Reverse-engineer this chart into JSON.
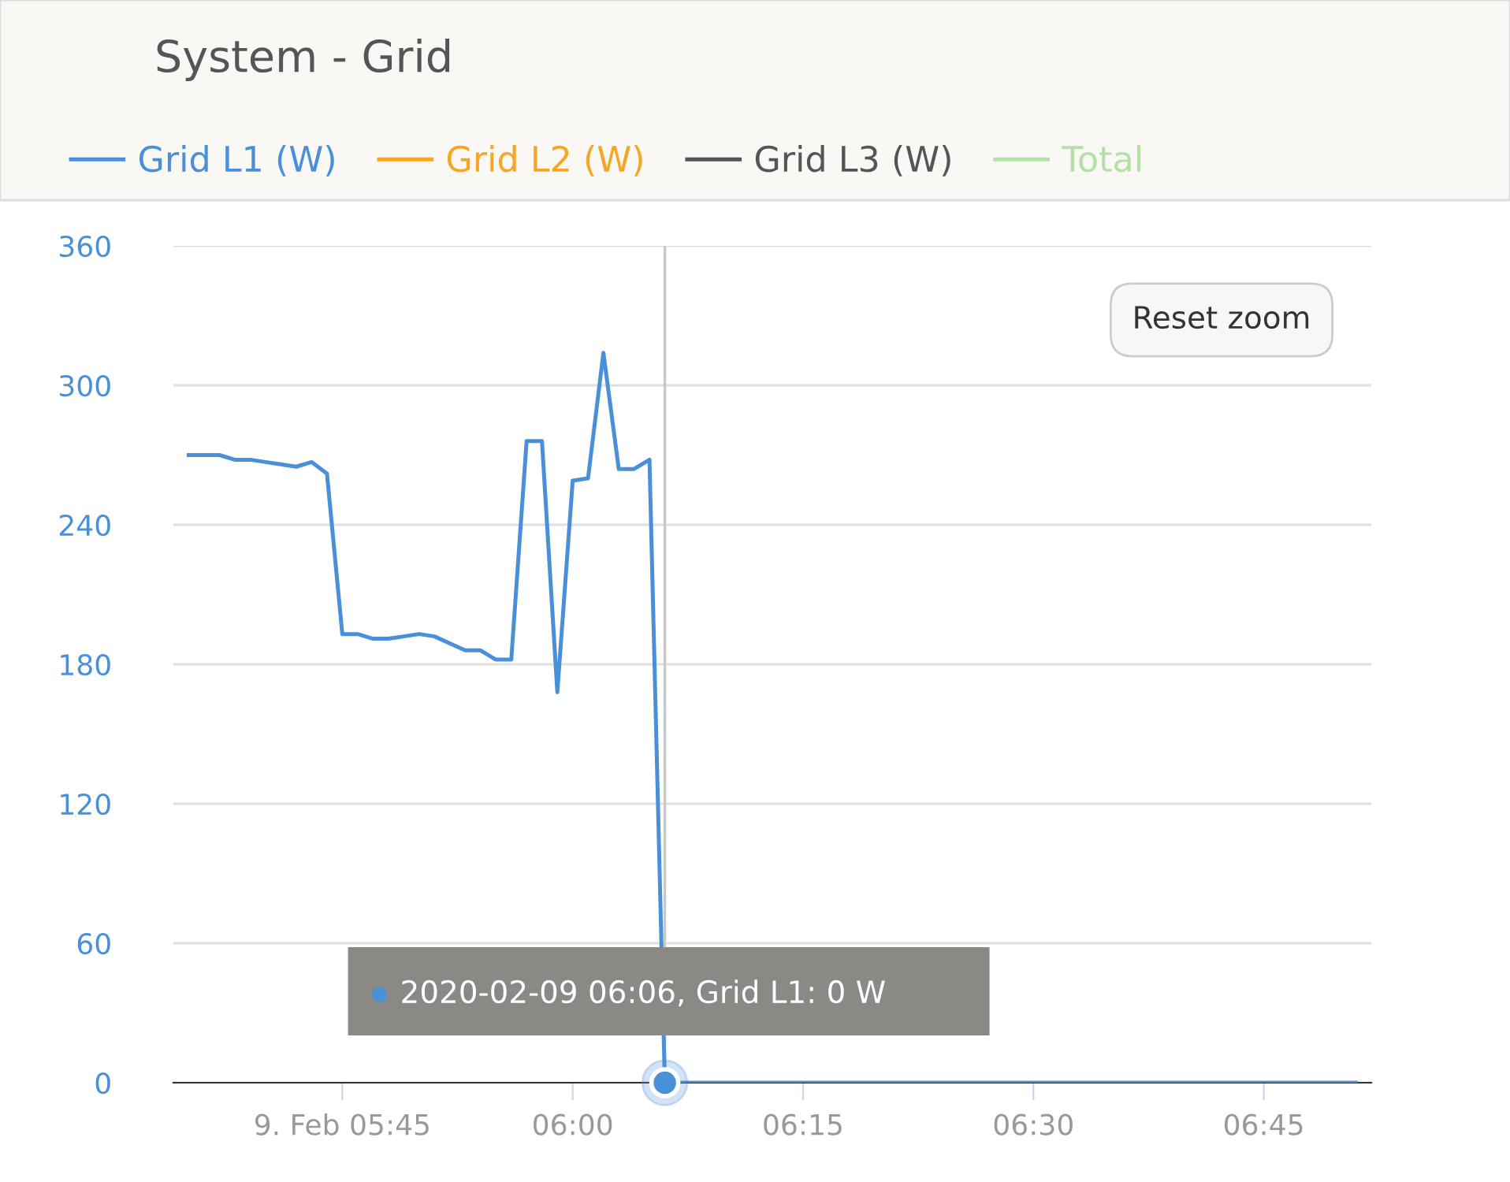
{
  "chart_data": {
    "type": "line",
    "title": "System - Grid",
    "x": [
      "2020-02-09T05:35",
      "2020-02-09T05:36",
      "2020-02-09T05:37",
      "2020-02-09T05:38",
      "2020-02-09T05:39",
      "2020-02-09T05:40",
      "2020-02-09T05:41",
      "2020-02-09T05:42",
      "2020-02-09T05:43",
      "2020-02-09T05:44",
      "2020-02-09T05:45",
      "2020-02-09T05:46",
      "2020-02-09T05:47",
      "2020-02-09T05:48",
      "2020-02-09T05:49",
      "2020-02-09T05:50",
      "2020-02-09T05:51",
      "2020-02-09T05:52",
      "2020-02-09T05:53",
      "2020-02-09T05:54",
      "2020-02-09T05:55",
      "2020-02-09T05:56",
      "2020-02-09T05:57",
      "2020-02-09T05:58",
      "2020-02-09T05:59",
      "2020-02-09T06:00",
      "2020-02-09T06:01",
      "2020-02-09T06:02",
      "2020-02-09T06:03",
      "2020-02-09T06:04",
      "2020-02-09T06:05",
      "2020-02-09T06:06",
      "2020-02-09T06:51"
    ],
    "series": [
      {
        "name": "Grid L1 (W)",
        "color": "#4a90d9",
        "values": [
          270,
          270,
          270,
          268,
          268,
          267,
          266,
          265,
          267,
          262,
          193,
          193,
          191,
          191,
          192,
          193,
          192,
          189,
          186,
          186,
          182,
          182,
          276,
          276,
          168,
          259,
          260,
          314,
          264,
          264,
          268,
          0,
          0
        ]
      },
      {
        "name": "Grid L2 (W)",
        "color": "#f5a623",
        "values": [
          null,
          null,
          null,
          null,
          null,
          null,
          null,
          null,
          null,
          null,
          null,
          null,
          null,
          null,
          null,
          null,
          null,
          null,
          null,
          null,
          null,
          null,
          null,
          null,
          null,
          null,
          null,
          null,
          null,
          null,
          null,
          null,
          null
        ]
      },
      {
        "name": "Grid L3 (W)",
        "color": "#555555",
        "values": [
          null,
          null,
          null,
          null,
          null,
          null,
          null,
          null,
          null,
          null,
          null,
          null,
          null,
          null,
          null,
          null,
          null,
          null,
          null,
          null,
          null,
          null,
          null,
          null,
          null,
          null,
          null,
          null,
          null,
          null,
          null,
          null,
          null
        ]
      },
      {
        "name": "Total",
        "color": "#b5dfa8",
        "values": [
          null,
          null,
          null,
          null,
          null,
          null,
          null,
          null,
          null,
          null,
          null,
          null,
          null,
          null,
          null,
          null,
          null,
          null,
          null,
          null,
          null,
          null,
          null,
          null,
          null,
          null,
          null,
          null,
          null,
          null,
          null,
          null,
          null
        ]
      }
    ],
    "xlim": [
      "2020-02-09T05:34",
      "2020-02-09T06:52"
    ],
    "xticks": [
      {
        "value": "2020-02-09T05:45",
        "label": "9. Feb 05:45"
      },
      {
        "value": "2020-02-09T06:00",
        "label": "06:00"
      },
      {
        "value": "2020-02-09T06:15",
        "label": "06:15"
      },
      {
        "value": "2020-02-09T06:30",
        "label": "06:30"
      },
      {
        "value": "2020-02-09T06:45",
        "label": "06:45"
      }
    ],
    "ylim": [
      0,
      360
    ],
    "yticks": [
      0,
      60,
      120,
      180,
      240,
      300,
      360
    ],
    "grid": "y",
    "legend": "top left",
    "marker": "none",
    "line_style": "solid",
    "ref_lines": [
      {
        "axis": "x",
        "value": "2020-02-09T06:06",
        "label": null,
        "color": "#c8c8c8"
      }
    ],
    "annotations": [
      {
        "text": "2020-02-09 06:06, Grid L1: 0 W",
        "x": "2020-02-09T06:06",
        "y": 0
      },
      "Reset zoom"
    ]
  }
}
